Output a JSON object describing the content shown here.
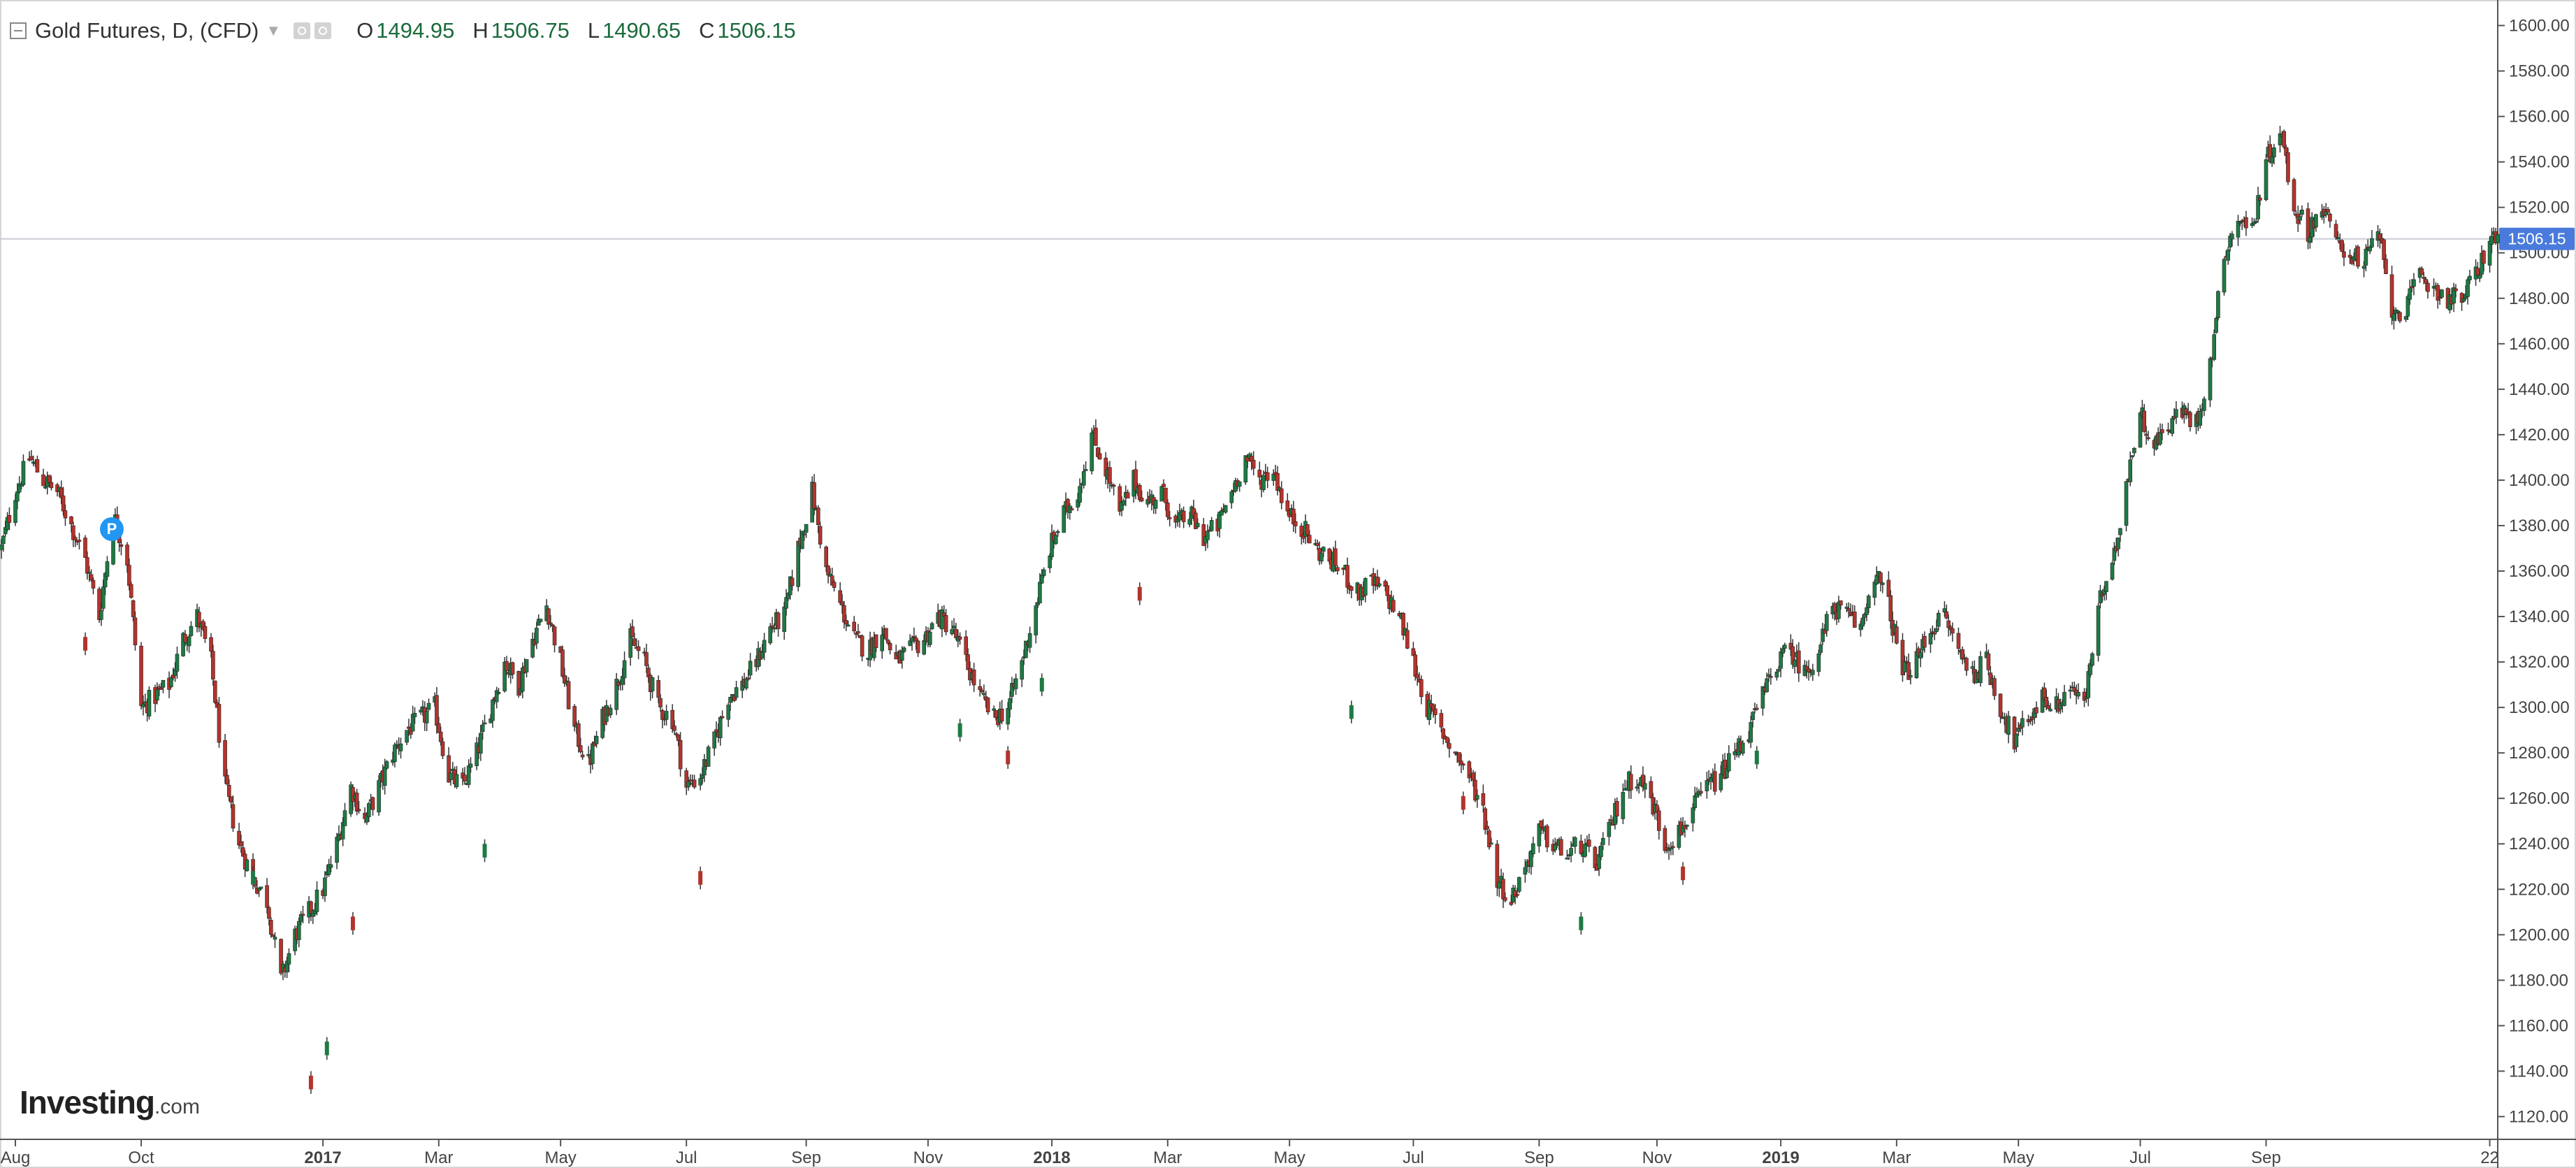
{
  "header": {
    "title": "Gold Futures, D, (CFD)",
    "open_label": "O",
    "open": "1494.95",
    "high_label": "H",
    "high": "1506.75",
    "low_label": "L",
    "low": "1490.65",
    "close_label": "C",
    "close": "1506.15"
  },
  "brand": {
    "name": "Investing",
    "domain": ".com"
  },
  "marker": {
    "label": "P"
  },
  "colors": {
    "up": "#1e7a44",
    "down": "#b3342c",
    "price_tag": "#4a7bdc",
    "grid_line": "#c9ccd6"
  },
  "chart_data": {
    "type": "candlestick",
    "title": "Gold Futures, D, (CFD)",
    "ylim": [
      1110,
      1610
    ],
    "yticks": [
      1120,
      1140,
      1160,
      1180,
      1200,
      1220,
      1240,
      1260,
      1280,
      1300,
      1320,
      1340,
      1360,
      1380,
      1400,
      1420,
      1440,
      1460,
      1480,
      1500,
      1520,
      1540,
      1560,
      1580,
      1600
    ],
    "ytick_labels": [
      "1120.00",
      "1140.00",
      "1160.00",
      "1180.00",
      "1200.00",
      "1220.00",
      "1240.00",
      "1260.00",
      "1280.00",
      "1300.00",
      "1320.00",
      "1340.00",
      "1360.00",
      "1380.00",
      "1400.00",
      "1420.00",
      "1440.00",
      "1460.00",
      "1480.00",
      "1500.00",
      "1520.00",
      "1540.00",
      "1560.00",
      "1580.00",
      "1600.00"
    ],
    "current_price": 1506.15,
    "current_price_label": "1506.15",
    "x_start": "2016-07-25",
    "x_end": "2019-12-27",
    "x_ticks": [
      {
        "label": "Aug",
        "date": "2016-08-01",
        "bold": false
      },
      {
        "label": "Oct",
        "date": "2016-10-03",
        "bold": false
      },
      {
        "label": "2017",
        "date": "2017-01-02",
        "bold": true
      },
      {
        "label": "Mar",
        "date": "2017-03-01",
        "bold": false
      },
      {
        "label": "May",
        "date": "2017-05-01",
        "bold": false
      },
      {
        "label": "Jul",
        "date": "2017-07-03",
        "bold": false
      },
      {
        "label": "Sep",
        "date": "2017-09-01",
        "bold": false
      },
      {
        "label": "Nov",
        "date": "2017-11-01",
        "bold": false
      },
      {
        "label": "2018",
        "date": "2018-01-02",
        "bold": true
      },
      {
        "label": "Mar",
        "date": "2018-03-01",
        "bold": false
      },
      {
        "label": "May",
        "date": "2018-05-01",
        "bold": false
      },
      {
        "label": "Jul",
        "date": "2018-07-02",
        "bold": false
      },
      {
        "label": "Sep",
        "date": "2018-09-03",
        "bold": false
      },
      {
        "label": "Nov",
        "date": "2018-11-01",
        "bold": false
      },
      {
        "label": "2019",
        "date": "2019-01-02",
        "bold": true
      },
      {
        "label": "Mar",
        "date": "2019-03-01",
        "bold": false
      },
      {
        "label": "May",
        "date": "2019-05-01",
        "bold": false
      },
      {
        "label": "Jul",
        "date": "2019-07-01",
        "bold": false
      },
      {
        "label": "Sep",
        "date": "2019-09-02",
        "bold": false
      },
      {
        "label": "22",
        "date": "2019-12-23",
        "bold": false
      }
    ],
    "close_path": [
      [
        "2016-07-25",
        1370
      ],
      [
        "2016-08-01",
        1395
      ],
      [
        "2016-08-08",
        1410
      ],
      [
        "2016-08-15",
        1400
      ],
      [
        "2016-08-22",
        1395
      ],
      [
        "2016-08-29",
        1380
      ],
      [
        "2016-09-05",
        1365
      ],
      [
        "2016-09-12",
        1340
      ],
      [
        "2016-09-19",
        1385
      ],
      [
        "2016-09-26",
        1365
      ],
      [
        "2016-10-03",
        1300
      ],
      [
        "2016-10-10",
        1305
      ],
      [
        "2016-10-17",
        1310
      ],
      [
        "2016-10-24",
        1330
      ],
      [
        "2016-10-31",
        1340
      ],
      [
        "2016-11-07",
        1320
      ],
      [
        "2016-11-14",
        1265
      ],
      [
        "2016-11-21",
        1240
      ],
      [
        "2016-11-28",
        1225
      ],
      [
        "2016-12-05",
        1215
      ],
      [
        "2016-12-12",
        1180
      ],
      [
        "2016-12-19",
        1200
      ],
      [
        "2016-12-26",
        1210
      ],
      [
        "2017-01-02",
        1220
      ],
      [
        "2017-01-09",
        1240
      ],
      [
        "2017-01-16",
        1265
      ],
      [
        "2017-01-23",
        1250
      ],
      [
        "2017-01-30",
        1265
      ],
      [
        "2017-02-06",
        1280
      ],
      [
        "2017-02-13",
        1290
      ],
      [
        "2017-02-20",
        1295
      ],
      [
        "2017-02-27",
        1300
      ],
      [
        "2017-03-06",
        1270
      ],
      [
        "2017-03-13",
        1265
      ],
      [
        "2017-03-20",
        1280
      ],
      [
        "2017-03-27",
        1300
      ],
      [
        "2017-04-03",
        1320
      ],
      [
        "2017-04-10",
        1310
      ],
      [
        "2017-04-17",
        1330
      ],
      [
        "2017-04-24",
        1345
      ],
      [
        "2017-05-01",
        1320
      ],
      [
        "2017-05-08",
        1290
      ],
      [
        "2017-05-15",
        1275
      ],
      [
        "2017-05-22",
        1295
      ],
      [
        "2017-05-29",
        1310
      ],
      [
        "2017-06-05",
        1330
      ],
      [
        "2017-06-12",
        1320
      ],
      [
        "2017-06-19",
        1300
      ],
      [
        "2017-06-26",
        1295
      ],
      [
        "2017-07-03",
        1265
      ],
      [
        "2017-07-10",
        1270
      ],
      [
        "2017-07-17",
        1285
      ],
      [
        "2017-07-24",
        1305
      ],
      [
        "2017-07-31",
        1310
      ],
      [
        "2017-08-07",
        1320
      ],
      [
        "2017-08-14",
        1335
      ],
      [
        "2017-08-21",
        1340
      ],
      [
        "2017-08-28",
        1370
      ],
      [
        "2017-09-04",
        1395
      ],
      [
        "2017-09-11",
        1360
      ],
      [
        "2017-09-18",
        1345
      ],
      [
        "2017-09-25",
        1330
      ],
      [
        "2017-10-02",
        1325
      ],
      [
        "2017-10-09",
        1335
      ],
      [
        "2017-10-16",
        1320
      ],
      [
        "2017-10-23",
        1325
      ],
      [
        "2017-10-30",
        1330
      ],
      [
        "2017-11-06",
        1340
      ],
      [
        "2017-11-13",
        1335
      ],
      [
        "2017-11-20",
        1320
      ],
      [
        "2017-11-27",
        1305
      ],
      [
        "2017-12-04",
        1295
      ],
      [
        "2017-12-11",
        1300
      ],
      [
        "2017-12-18",
        1320
      ],
      [
        "2017-12-25",
        1345
      ],
      [
        "2018-01-01",
        1370
      ],
      [
        "2018-01-08",
        1385
      ],
      [
        "2018-01-15",
        1395
      ],
      [
        "2018-01-22",
        1420
      ],
      [
        "2018-01-29",
        1405
      ],
      [
        "2018-02-05",
        1385
      ],
      [
        "2018-02-12",
        1400
      ],
      [
        "2018-02-19",
        1390
      ],
      [
        "2018-02-26",
        1395
      ],
      [
        "2018-03-05",
        1380
      ],
      [
        "2018-03-12",
        1385
      ],
      [
        "2018-03-19",
        1375
      ],
      [
        "2018-03-26",
        1380
      ],
      [
        "2018-04-02",
        1395
      ],
      [
        "2018-04-09",
        1410
      ],
      [
        "2018-04-16",
        1400
      ],
      [
        "2018-04-23",
        1405
      ],
      [
        "2018-04-30",
        1385
      ],
      [
        "2018-05-07",
        1380
      ],
      [
        "2018-05-14",
        1370
      ],
      [
        "2018-05-21",
        1365
      ],
      [
        "2018-05-28",
        1360
      ],
      [
        "2018-06-04",
        1350
      ],
      [
        "2018-06-11",
        1355
      ],
      [
        "2018-06-18",
        1350
      ],
      [
        "2018-06-25",
        1340
      ],
      [
        "2018-07-02",
        1320
      ],
      [
        "2018-07-09",
        1300
      ],
      [
        "2018-07-16",
        1290
      ],
      [
        "2018-07-23",
        1280
      ],
      [
        "2018-07-30",
        1270
      ],
      [
        "2018-08-06",
        1255
      ],
      [
        "2018-08-13",
        1225
      ],
      [
        "2018-08-20",
        1215
      ],
      [
        "2018-08-27",
        1230
      ],
      [
        "2018-09-03",
        1245
      ],
      [
        "2018-09-10",
        1240
      ],
      [
        "2018-09-17",
        1235
      ],
      [
        "2018-09-24",
        1240
      ],
      [
        "2018-10-01",
        1230
      ],
      [
        "2018-10-08",
        1245
      ],
      [
        "2018-10-15",
        1265
      ],
      [
        "2018-10-22",
        1270
      ],
      [
        "2018-10-29",
        1260
      ],
      [
        "2018-11-05",
        1240
      ],
      [
        "2018-11-12",
        1245
      ],
      [
        "2018-11-19",
        1255
      ],
      [
        "2018-11-26",
        1265
      ],
      [
        "2018-12-03",
        1270
      ],
      [
        "2018-12-10",
        1280
      ],
      [
        "2018-12-17",
        1290
      ],
      [
        "2018-12-24",
        1305
      ],
      [
        "2018-12-31",
        1320
      ],
      [
        "2019-01-07",
        1325
      ],
      [
        "2019-01-14",
        1315
      ],
      [
        "2019-01-21",
        1325
      ],
      [
        "2019-01-28",
        1345
      ],
      [
        "2019-02-04",
        1340
      ],
      [
        "2019-02-11",
        1335
      ],
      [
        "2019-02-18",
        1360
      ],
      [
        "2019-02-25",
        1345
      ],
      [
        "2019-03-04",
        1315
      ],
      [
        "2019-03-11",
        1320
      ],
      [
        "2019-03-18",
        1335
      ],
      [
        "2019-03-25",
        1340
      ],
      [
        "2019-04-01",
        1325
      ],
      [
        "2019-04-08",
        1315
      ],
      [
        "2019-04-15",
        1320
      ],
      [
        "2019-04-22",
        1300
      ],
      [
        "2019-04-29",
        1285
      ],
      [
        "2019-05-06",
        1295
      ],
      [
        "2019-05-13",
        1305
      ],
      [
        "2019-05-20",
        1300
      ],
      [
        "2019-05-27",
        1310
      ],
      [
        "2019-06-03",
        1300
      ],
      [
        "2019-06-10",
        1345
      ],
      [
        "2019-06-17",
        1360
      ],
      [
        "2019-06-24",
        1400
      ],
      [
        "2019-07-01",
        1430
      ],
      [
        "2019-07-08",
        1415
      ],
      [
        "2019-07-15",
        1425
      ],
      [
        "2019-07-22",
        1430
      ],
      [
        "2019-07-29",
        1425
      ],
      [
        "2019-08-05",
        1450
      ],
      [
        "2019-08-12",
        1500
      ],
      [
        "2019-08-19",
        1515
      ],
      [
        "2019-08-26",
        1510
      ],
      [
        "2019-09-02",
        1540
      ],
      [
        "2019-09-09",
        1555
      ],
      [
        "2019-09-16",
        1520
      ],
      [
        "2019-09-23",
        1510
      ],
      [
        "2019-09-30",
        1520
      ],
      [
        "2019-10-07",
        1505
      ],
      [
        "2019-10-14",
        1500
      ],
      [
        "2019-10-21",
        1495
      ],
      [
        "2019-10-28",
        1510
      ],
      [
        "2019-11-04",
        1475
      ],
      [
        "2019-11-11",
        1475
      ],
      [
        "2019-11-18",
        1490
      ],
      [
        "2019-11-25",
        1485
      ],
      [
        "2019-12-02",
        1480
      ],
      [
        "2019-12-09",
        1480
      ],
      [
        "2019-12-16",
        1490
      ],
      [
        "2019-12-23",
        1506.15
      ]
    ],
    "gap_outliers": [
      [
        "2016-09-05",
        1328
      ],
      [
        "2016-11-28",
        1225
      ],
      [
        "2016-12-27",
        1135
      ],
      [
        "2017-01-04",
        1150
      ],
      [
        "2017-01-17",
        1205
      ],
      [
        "2017-03-24",
        1237
      ],
      [
        "2017-07-10",
        1225
      ],
      [
        "2017-11-17",
        1290
      ],
      [
        "2017-12-11",
        1278
      ],
      [
        "2017-12-28",
        1310
      ],
      [
        "2018-02-15",
        1350
      ],
      [
        "2018-06-01",
        1298
      ],
      [
        "2018-07-27",
        1258
      ],
      [
        "2018-09-24",
        1205
      ],
      [
        "2018-11-14",
        1227
      ],
      [
        "2018-12-21",
        1278
      ]
    ]
  }
}
